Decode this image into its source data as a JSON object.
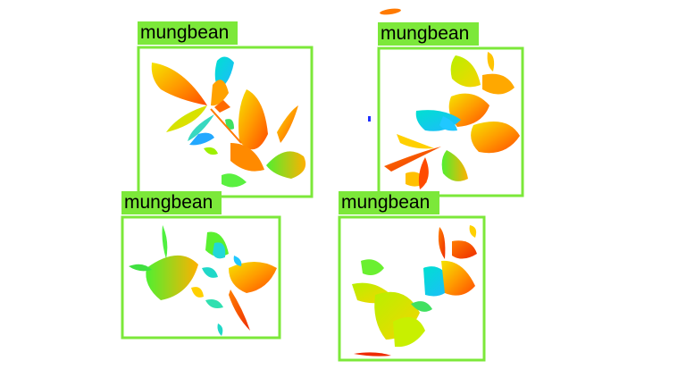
{
  "image": {
    "background": "#ffffff",
    "box_color": "#7ce83a",
    "label_bg": "#7ce83a",
    "label_color": "#000000"
  },
  "detections": [
    {
      "label": "mungbean"
    },
    {
      "label": "mungbean"
    },
    {
      "label": "mungbean"
    },
    {
      "label": "mungbean"
    }
  ]
}
